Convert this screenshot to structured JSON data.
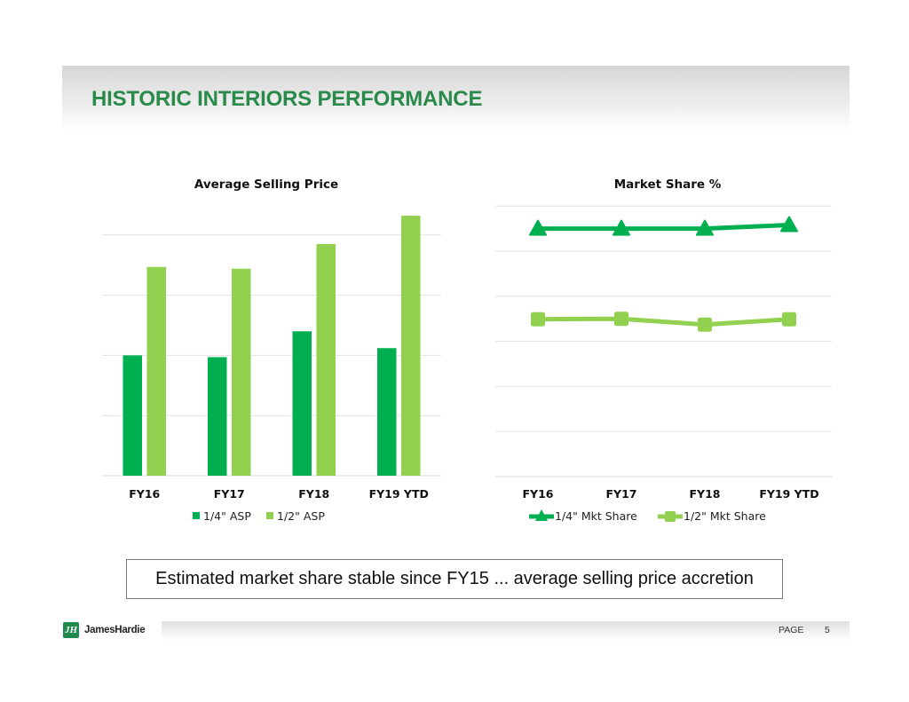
{
  "header": {
    "title": "HISTORIC INTERIORS PERFORMANCE"
  },
  "colors": {
    "dark_green": "#00b050",
    "light_green": "#92d050",
    "title_green": "#2a8a4a",
    "grid": "#e2e2e2"
  },
  "chart_data": [
    {
      "type": "bar",
      "title": "Average Selling Price",
      "categories": [
        "FY16",
        "FY17",
        "FY18",
        "FY19 YTD"
      ],
      "series": [
        {
          "name": "1/4\" ASP",
          "color": "#00b050",
          "values": [
            2.0,
            1.97,
            2.4,
            2.12
          ]
        },
        {
          "name": "1/2\" ASP",
          "color": "#92d050",
          "values": [
            3.47,
            3.44,
            3.85,
            4.32
          ]
        }
      ],
      "xlabel": "",
      "ylabel": "",
      "ylim": [
        0,
        4.5
      ],
      "grid_values": [
        1,
        2,
        3,
        4
      ],
      "y_units": "relative (no axis labels shown)",
      "grid": true,
      "legend": "bottom"
    },
    {
      "type": "line",
      "title": "Market Share %",
      "categories": [
        "FY16",
        "FY17",
        "FY18",
        "FY19 YTD"
      ],
      "series": [
        {
          "name": "1/4\" Mkt Share",
          "color": "#00b050",
          "marker": "triangle",
          "values": [
            5.5,
            5.5,
            5.5,
            5.58
          ]
        },
        {
          "name": "1/2\" Mkt Share",
          "color": "#92d050",
          "marker": "square",
          "values": [
            3.49,
            3.5,
            3.37,
            3.49
          ]
        }
      ],
      "xlabel": "",
      "ylabel": "",
      "ylim": [
        0,
        6
      ],
      "grid_values": [
        1,
        2,
        3,
        4,
        5,
        6
      ],
      "y_units": "relative (no axis labels shown)",
      "grid": true,
      "legend": "bottom"
    }
  ],
  "callout": {
    "text": "Estimated market share stable since FY15 ... average selling price accretion"
  },
  "footer": {
    "logo_text": "JamesHardie",
    "logo_mark": "JH",
    "page_label": "PAGE",
    "page_number": "5"
  }
}
